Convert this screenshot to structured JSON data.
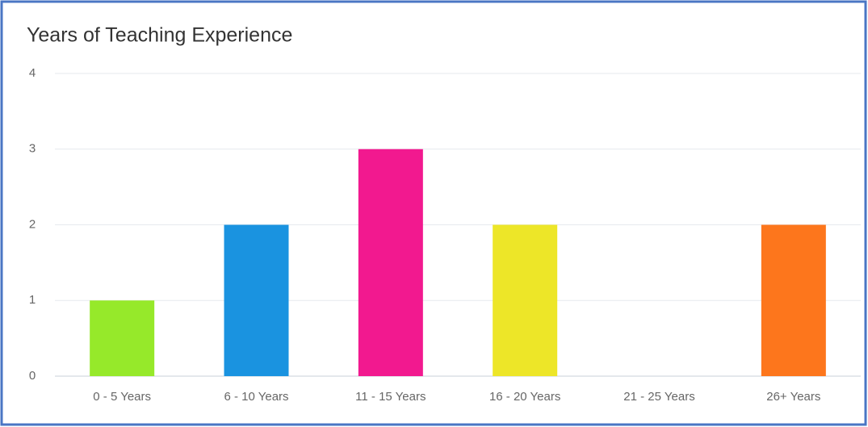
{
  "chart_data": {
    "type": "bar",
    "title": "Years of Teaching Experience",
    "categories": [
      "0 - 5 Years",
      "6 - 10 Years",
      "11 - 15 Years",
      "16 - 20 Years",
      "21 - 25 Years",
      "26+ Years"
    ],
    "values": [
      1,
      2,
      3,
      2,
      0,
      2
    ],
    "colors": [
      "#96e92a",
      "#1a93e0",
      "#f2198f",
      "#ede628",
      "#999999",
      "#fd761c"
    ],
    "ylim": [
      0,
      4
    ],
    "yticks": [
      0,
      1,
      2,
      3,
      4
    ],
    "grid": true
  }
}
